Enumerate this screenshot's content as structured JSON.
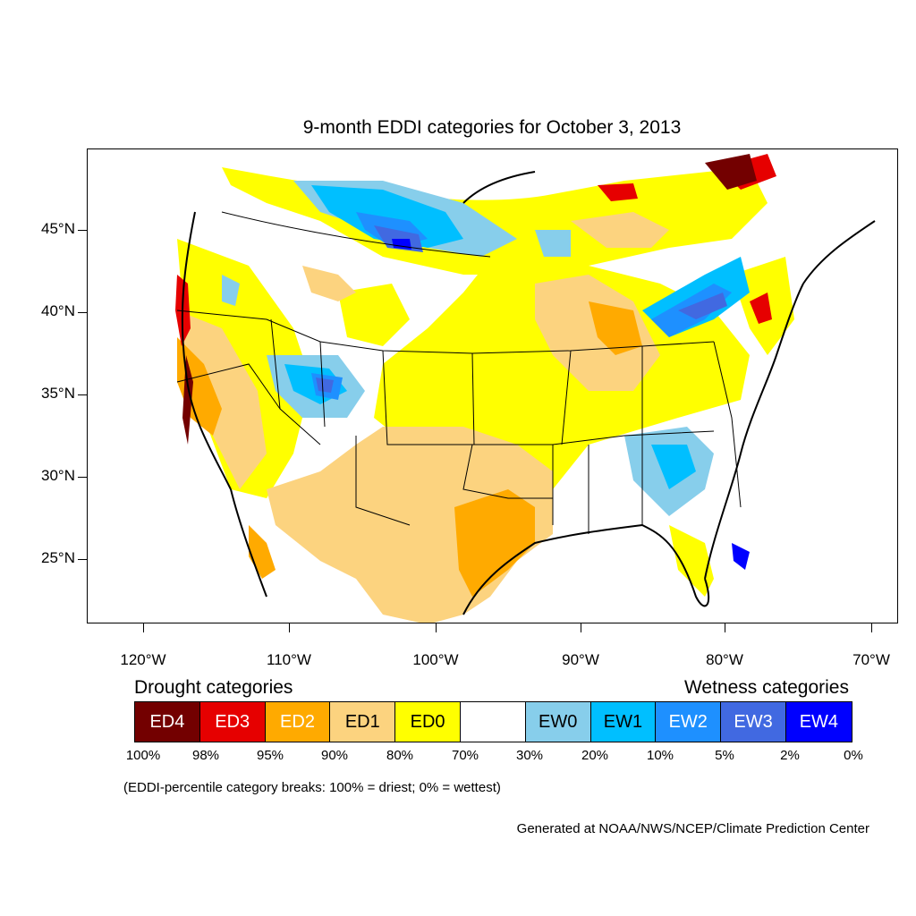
{
  "title": "9-month EDDI categories for October 3, 2013",
  "map": {
    "projection": "lambert-conformal",
    "lat_labels": [
      "45°N",
      "40°N",
      "35°N",
      "30°N",
      "25°N"
    ],
    "lon_labels": [
      "120°W",
      "110°W",
      "100°W",
      "90°W",
      "80°W",
      "70°W"
    ]
  },
  "legend": {
    "drought_heading": "Drought categories",
    "wetness_heading": "Wetness categories",
    "categories": [
      {
        "label": "ED4",
        "color": "#730000",
        "text_color": "#ffffff"
      },
      {
        "label": "ED3",
        "color": "#e60000",
        "text_color": "#ffffff"
      },
      {
        "label": "ED2",
        "color": "#ffaa00",
        "text_color": "#ffffff"
      },
      {
        "label": "ED1",
        "color": "#fcd37f",
        "text_color": "#000000"
      },
      {
        "label": "ED0",
        "color": "#ffff00",
        "text_color": "#000000"
      },
      {
        "label": "",
        "color": "#ffffff",
        "text_color": "#000000"
      },
      {
        "label": "EW0",
        "color": "#87ceeb",
        "text_color": "#000000"
      },
      {
        "label": "EW1",
        "color": "#00bfff",
        "text_color": "#000000"
      },
      {
        "label": "EW2",
        "color": "#1e90ff",
        "text_color": "#ffffff"
      },
      {
        "label": "EW3",
        "color": "#4169e1",
        "text_color": "#ffffff"
      },
      {
        "label": "EW4",
        "color": "#0000ff",
        "text_color": "#ffffff"
      }
    ],
    "breaks": [
      "100%",
      "98%",
      "95%",
      "90%",
      "80%",
      "70%",
      "30%",
      "20%",
      "10%",
      "5%",
      "2%",
      "0%"
    ]
  },
  "note": "(EDDI-percentile category breaks: 100% = driest; 0% = wettest)",
  "credit": "Generated at NOAA/NWS/NCEP/Climate Prediction Center"
}
